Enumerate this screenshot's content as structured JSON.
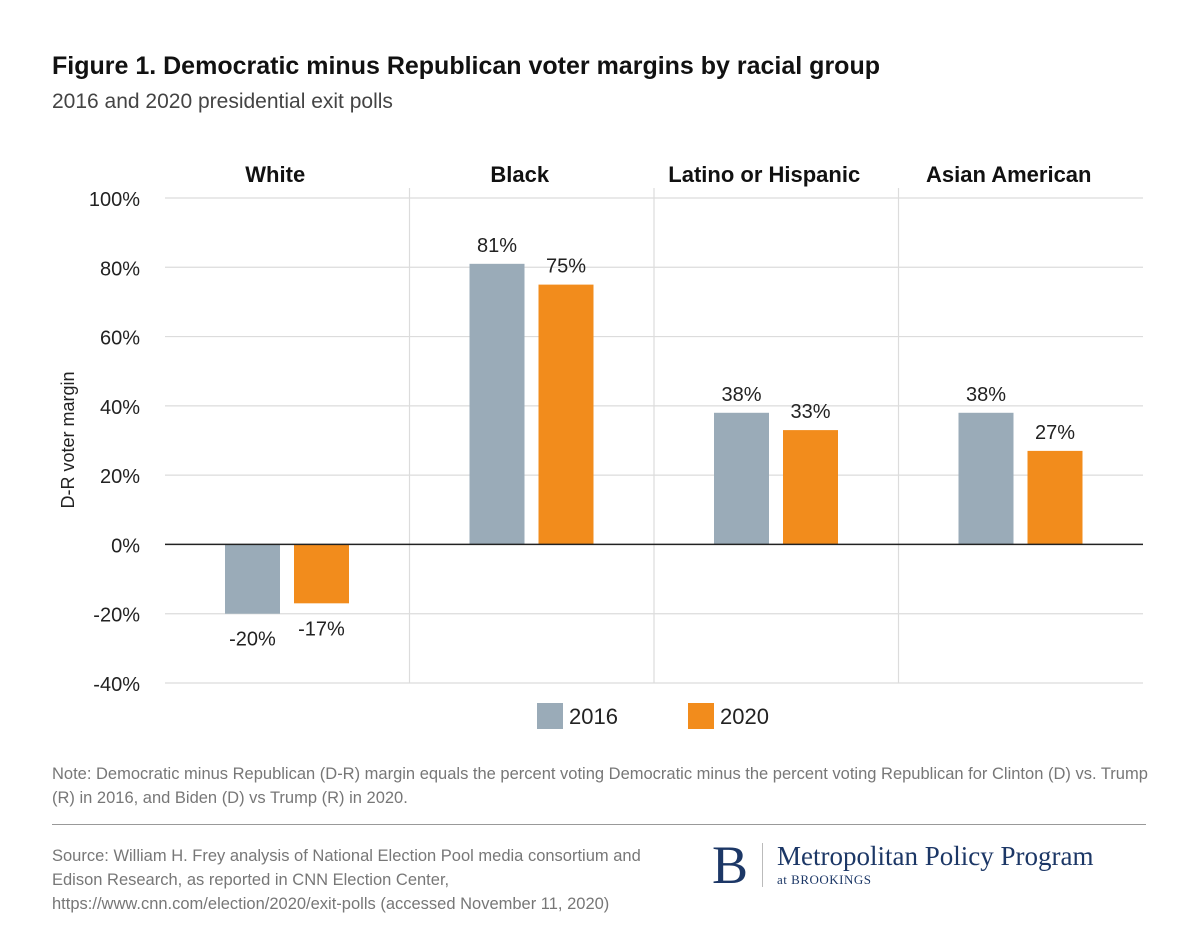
{
  "chart_data": {
    "type": "bar",
    "title": "Figure 1. Democratic minus Republican voter margins by racial group",
    "subtitle": "2016 and 2020 presidential exit polls",
    "ylabel": "D-R voter margin",
    "xlabel": "",
    "ylim": [
      -40,
      100
    ],
    "yticks": [
      "100%",
      "80%",
      "60%",
      "40%",
      "20%",
      "0%",
      "-20%",
      "-40%"
    ],
    "ytick_values": [
      100,
      80,
      60,
      40,
      20,
      0,
      -20,
      -40
    ],
    "grid": true,
    "legend_position": "bottom-center",
    "categories": [
      "White",
      "Black",
      "Latino or Hispanic",
      "Asian American"
    ],
    "series": [
      {
        "name": "2016",
        "color": "#9aabb8",
        "values": [
          -20,
          81,
          38,
          38
        ],
        "labels": [
          "-20%",
          "81%",
          "38%",
          "38%"
        ]
      },
      {
        "name": "2020",
        "color": "#f28c1c",
        "values": [
          -17,
          75,
          33,
          27
        ],
        "labels": [
          "-17%",
          "75%",
          "33%",
          "27%"
        ]
      }
    ]
  },
  "note": "Note: Democratic minus Republican (D-R) margin equals the percent voting Democratic minus the percent  voting Republican for Clinton (D) vs. Trump (R) in 2016, and Biden (D) vs Trump (R) in 2020.",
  "source": "Source: William H. Frey analysis of National Election Pool media consortium and Edison Research, as reported in CNN Election Center, https://www.cnn.com/election/2020/exit-polls (accessed November 11, 2020)",
  "logo": {
    "letter": "B",
    "name": "Metropolitan Policy Program",
    "sub": "at BROOKINGS"
  }
}
